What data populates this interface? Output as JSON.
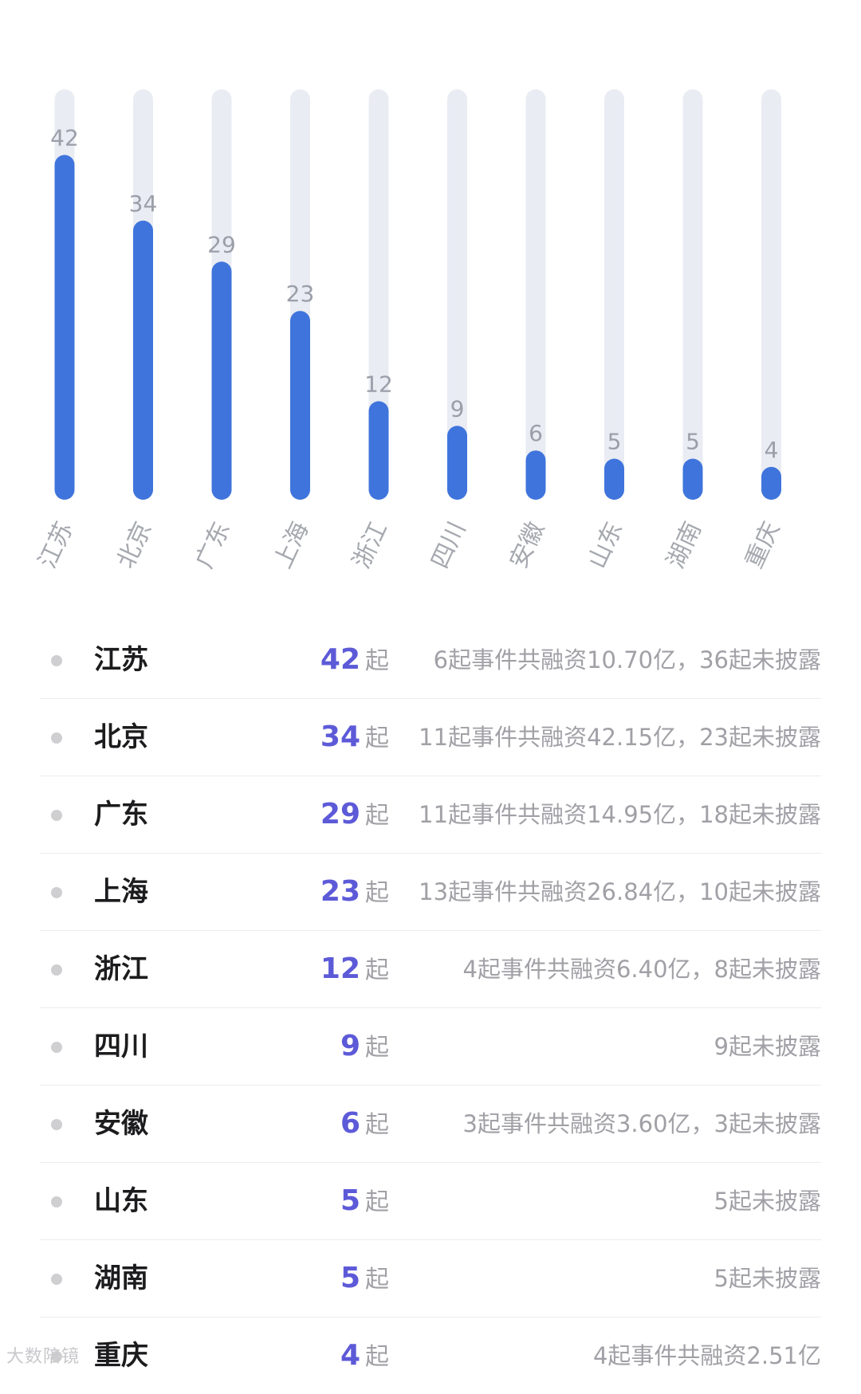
{
  "chart_data": {
    "type": "bar",
    "categories": [
      "江苏",
      "北京",
      "广东",
      "上海",
      "浙江",
      "四川",
      "安徽",
      "山东",
      "湖南",
      "重庆"
    ],
    "values": [
      42,
      34,
      29,
      23,
      12,
      9,
      6,
      5,
      5,
      4
    ],
    "title": "",
    "xlabel": "",
    "ylabel": "",
    "ylim": [
      0,
      50
    ],
    "grid": false,
    "colors": {
      "bar": "#3f74dc",
      "track": "#e9ecf3",
      "value_label": "#9a9ea8"
    }
  },
  "list": {
    "unit": "起",
    "rows": [
      {
        "province": "江苏",
        "count": "42",
        "detail": "6起事件共融资10.70亿，36起未披露"
      },
      {
        "province": "北京",
        "count": "34",
        "detail": "11起事件共融资42.15亿，23起未披露"
      },
      {
        "province": "广东",
        "count": "29",
        "detail": "11起事件共融资14.95亿，18起未披露"
      },
      {
        "province": "上海",
        "count": "23",
        "detail": "13起事件共融资26.84亿，10起未披露"
      },
      {
        "province": "浙江",
        "count": "12",
        "detail": "4起事件共融资6.40亿，8起未披露"
      },
      {
        "province": "四川",
        "count": "9",
        "detail": "9起未披露"
      },
      {
        "province": "安徽",
        "count": "6",
        "detail": "3起事件共融资3.60亿，3起未披露"
      },
      {
        "province": "山东",
        "count": "5",
        "detail": "5起未披露"
      },
      {
        "province": "湖南",
        "count": "5",
        "detail": "5起未披露"
      },
      {
        "province": "重庆",
        "count": "4",
        "detail": "4起事件共融资2.51亿"
      }
    ]
  },
  "footer": {
    "watermark": "大数陪镜"
  },
  "colors": {
    "accent": "#5d5ad8",
    "province_text": "#1c1c1e",
    "muted_text": "#a0a0a6",
    "dot": "#cfcfd2"
  }
}
